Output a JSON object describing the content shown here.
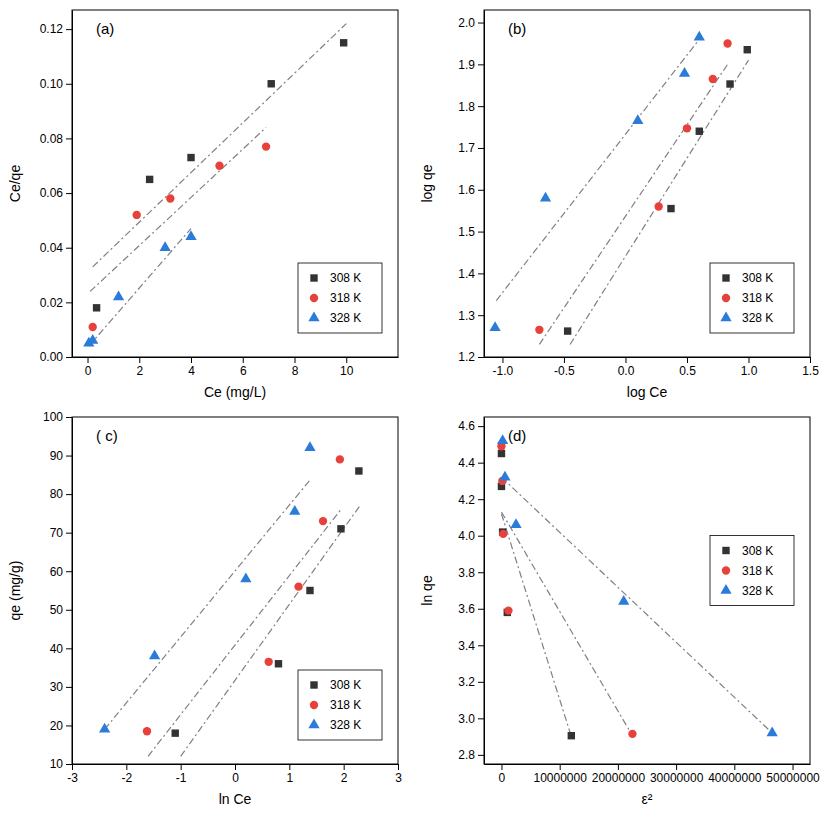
{
  "chart_data": [
    {
      "type": "scatter",
      "title": "(a)",
      "x_label": "Ce (mg/L)",
      "y_label": "Ce/qe",
      "legend": "lower right",
      "xlim": [
        -0.6,
        12
      ],
      "ylim": [
        0,
        0.127
      ],
      "xticks": [
        0,
        2,
        4,
        6,
        8,
        10
      ],
      "yticks": [
        {
          "value": 0,
          "label": "0.00"
        },
        {
          "value": 0.02,
          "label": "0.02"
        },
        {
          "value": 0.04,
          "label": "0.04"
        },
        {
          "value": 0.06,
          "label": "0.06"
        },
        {
          "value": 0.08,
          "label": "0.08"
        },
        {
          "value": 0.1,
          "label": "0.10"
        },
        {
          "value": 0.12,
          "label": "0.12"
        }
      ],
      "series": [
        {
          "name": "308 K",
          "color": "#333333",
          "marker": "square",
          "x": [
            0.35,
            2.4,
            4.0,
            7.1,
            9.9
          ],
          "values": [
            0.018,
            0.065,
            0.073,
            0.1,
            0.115
          ]
        },
        {
          "name": "318 K",
          "color": "#e8403a",
          "marker": "circle",
          "x": [
            0.2,
            1.9,
            3.2,
            5.1,
            6.9
          ],
          "values": [
            0.011,
            0.052,
            0.058,
            0.07,
            0.077
          ]
        },
        {
          "name": "328 K",
          "color": "#2b7bd9",
          "marker": "triangle",
          "x": [
            0.05,
            0.2,
            1.2,
            3.0,
            4.0
          ],
          "values": [
            0.005,
            0.006,
            0.022,
            0.04,
            0.044
          ]
        },
        {
          "type": "line",
          "line_style": "dashdot",
          "color": "#808080",
          "x": [
            0.2,
            10.0
          ],
          "values": [
            0.033,
            0.122
          ]
        },
        {
          "type": "line",
          "line_style": "dashdot",
          "color": "#808080",
          "x": [
            0.1,
            6.9
          ],
          "values": [
            0.024,
            0.084
          ]
        },
        {
          "type": "line",
          "line_style": "dashdot",
          "color": "#808080",
          "x": [
            0.05,
            4.0
          ],
          "values": [
            0.004,
            0.047
          ]
        }
      ]
    },
    {
      "type": "scatter",
      "title": "(b)",
      "x_label": "log Ce",
      "y_label": "log qe",
      "legend": "lower right",
      "xlim": [
        -1.15,
        1.5
      ],
      "ylim": [
        1.2,
        2.03
      ],
      "xticks": [
        {
          "value": -1,
          "label": "-1.0"
        },
        {
          "value": -0.5,
          "label": "-0.5"
        },
        {
          "value": 0,
          "label": "0.0"
        },
        {
          "value": 0.5,
          "label": "0.5"
        },
        {
          "value": 1,
          "label": "1.0"
        },
        {
          "value": 1.5,
          "label": "1.5"
        }
      ],
      "yticks": [
        1.2,
        1.3,
        1.4,
        1.5,
        1.6,
        1.7,
        1.8,
        1.9,
        {
          "value": 2,
          "label": "2.0"
        }
      ],
      "series": [
        {
          "name": "308 K",
          "color": "#333333",
          "marker": "square",
          "x": [
            -0.47,
            0.37,
            0.6,
            0.85,
            0.99
          ],
          "values": [
            1.262,
            1.555,
            1.74,
            1.853,
            1.935
          ]
        },
        {
          "name": "318 K",
          "color": "#e8403a",
          "marker": "circle",
          "x": [
            -0.7,
            0.27,
            0.5,
            0.71,
            0.83
          ],
          "values": [
            1.265,
            1.56,
            1.747,
            1.865,
            1.95
          ]
        },
        {
          "name": "328 K",
          "color": "#2b7bd9",
          "marker": "triangle",
          "x": [
            -1.06,
            -0.65,
            0.1,
            0.48,
            0.6
          ],
          "values": [
            1.27,
            1.58,
            1.765,
            1.878,
            1.965
          ]
        },
        {
          "type": "line",
          "line_style": "dashdot",
          "color": "#808080",
          "x": [
            -0.45,
            1.0
          ],
          "values": [
            1.23,
            1.91
          ]
        },
        {
          "type": "line",
          "line_style": "dashdot",
          "color": "#808080",
          "x": [
            -0.7,
            0.83
          ],
          "values": [
            1.23,
            1.9
          ]
        },
        {
          "type": "line",
          "line_style": "dashdot",
          "color": "#808080",
          "x": [
            -1.05,
            0.6
          ],
          "values": [
            1.335,
            1.96
          ]
        }
      ]
    },
    {
      "type": "scatter",
      "title": "( c)",
      "x_label": "ln Ce",
      "y_label": "qe (mg/g)",
      "legend": "lower right",
      "xlim": [
        -3,
        3
      ],
      "ylim": [
        10,
        100
      ],
      "xticks": [
        -3,
        -2,
        -1,
        0,
        1,
        2,
        3
      ],
      "yticks": [
        10,
        20,
        30,
        40,
        50,
        60,
        70,
        80,
        90,
        100
      ],
      "series": [
        {
          "name": "308 K",
          "color": "#333333",
          "marker": "square",
          "x": [
            -1.1,
            0.8,
            1.38,
            1.95,
            2.28
          ],
          "values": [
            18,
            36,
            55,
            71,
            86
          ]
        },
        {
          "name": "318 K",
          "color": "#e8403a",
          "marker": "circle",
          "x": [
            -1.62,
            0.62,
            1.17,
            1.62,
            1.93
          ],
          "values": [
            18.5,
            36.5,
            56,
            73,
            89
          ]
        },
        {
          "name": "328 K",
          "color": "#2b7bd9",
          "marker": "triangle",
          "x": [
            -2.4,
            -1.48,
            0.2,
            1.1,
            1.38
          ],
          "values": [
            19,
            38,
            58,
            75.5,
            92
          ]
        },
        {
          "type": "line",
          "line_style": "dashdot",
          "color": "#808080",
          "x": [
            -1.0,
            2.3
          ],
          "values": [
            12,
            77
          ]
        },
        {
          "type": "line",
          "line_style": "dashdot",
          "color": "#808080",
          "x": [
            -1.6,
            1.95
          ],
          "values": [
            12,
            76
          ]
        },
        {
          "type": "line",
          "line_style": "dashdot",
          "color": "#808080",
          "x": [
            -2.4,
            1.4
          ],
          "values": [
            19,
            84
          ]
        }
      ]
    },
    {
      "type": "scatter",
      "title": "(d)",
      "x_label": "ε²",
      "y_label": "ln qe",
      "legend": "right",
      "xlim": [
        -3000000,
        53000000
      ],
      "ylim": [
        2.75,
        4.65
      ],
      "xticks": [
        0,
        10000000,
        20000000,
        30000000,
        40000000,
        50000000
      ],
      "yticks": [
        2.8,
        {
          "value": 3,
          "label": "3.0"
        },
        3.2,
        3.4,
        3.6,
        3.8,
        {
          "value": 4,
          "label": "4.0"
        },
        4.2,
        4.4,
        4.6
      ],
      "series": [
        {
          "name": "308 K",
          "color": "#333333",
          "marker": "square",
          "x": [
            0,
            0,
            200000,
            1000000,
            12000000
          ],
          "values": [
            4.45,
            4.27,
            4.02,
            3.58,
            2.905
          ]
        },
        {
          "name": "318 K",
          "color": "#e8403a",
          "marker": "circle",
          "x": [
            0,
            150000,
            300000,
            1200000,
            22500000
          ],
          "values": [
            4.49,
            4.3,
            4.01,
            3.59,
            2.915
          ]
        },
        {
          "name": "328 K",
          "color": "#2b7bd9",
          "marker": "triangle",
          "x": [
            200000,
            600000,
            2500000,
            21000000,
            46500000
          ],
          "values": [
            4.52,
            4.32,
            4.06,
            3.64,
            2.92
          ]
        },
        {
          "type": "line",
          "line_style": "dashdot",
          "color": "#808080",
          "x": [
            0,
            12000000
          ],
          "values": [
            4.12,
            2.9
          ]
        },
        {
          "type": "line",
          "line_style": "dashdot",
          "color": "#808080",
          "x": [
            0,
            22500000
          ],
          "values": [
            4.13,
            2.905
          ]
        },
        {
          "type": "line",
          "line_style": "dashdot",
          "color": "#808080",
          "x": [
            0,
            46500000
          ],
          "values": [
            4.32,
            2.92
          ]
        }
      ]
    }
  ]
}
